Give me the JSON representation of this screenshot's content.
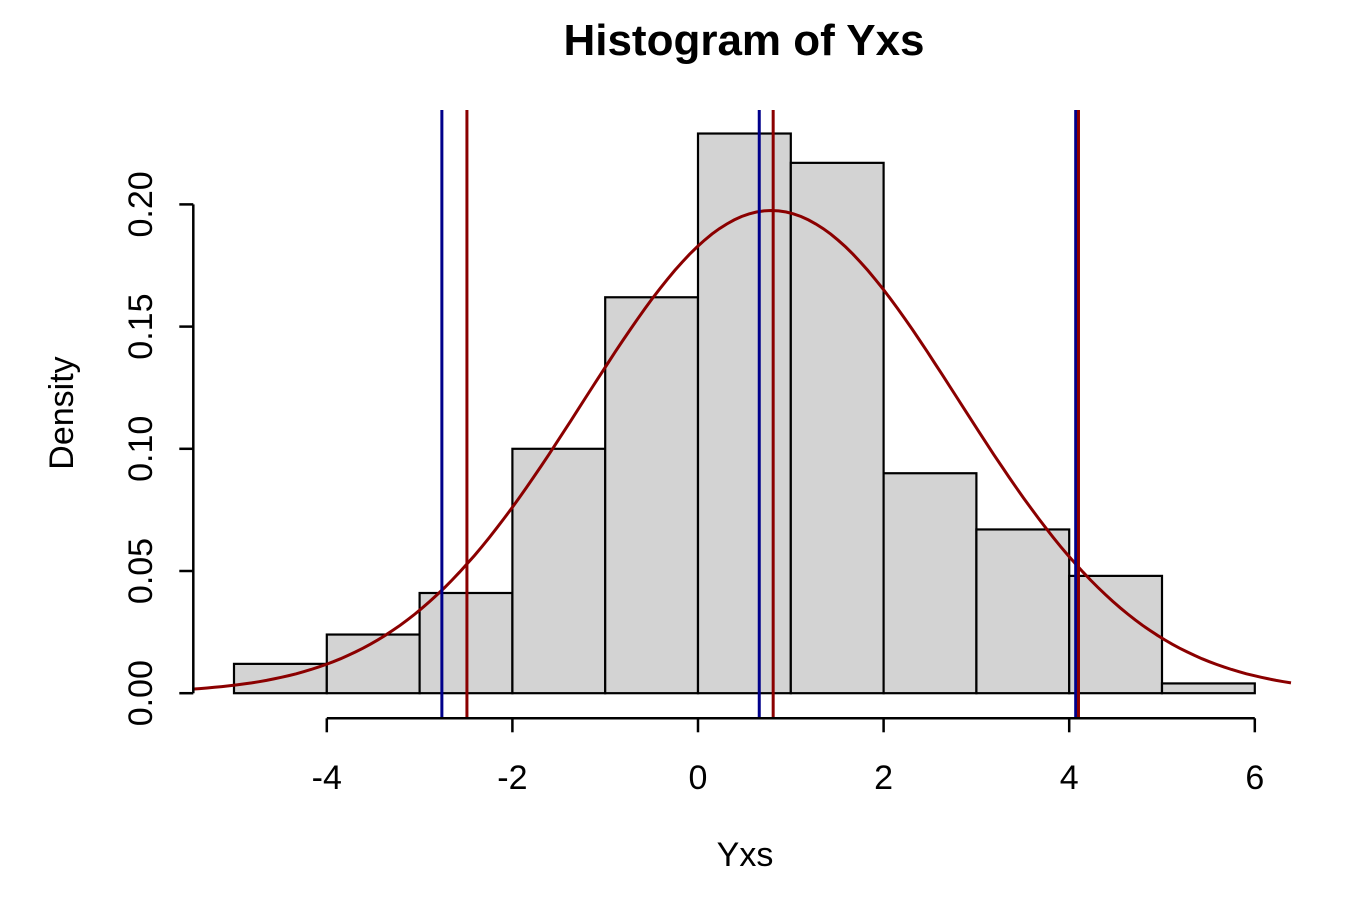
{
  "chart_data": {
    "type": "bar",
    "subtype": "histogram",
    "title": "Histogram of Yxs",
    "xlabel": "Yxs",
    "ylabel": "Density",
    "x_tick_labels": [
      "-4",
      "-2",
      "0",
      "2",
      "4",
      "6"
    ],
    "x_tick_values": [
      -4,
      -2,
      0,
      2,
      4,
      6
    ],
    "y_tick_labels": [
      "0.00",
      "0.05",
      "0.10",
      "0.15",
      "0.20"
    ],
    "y_tick_values": [
      0,
      0.05,
      0.1,
      0.15,
      0.2
    ],
    "xlim": [
      -5.44,
      6.44
    ],
    "ylim": [
      -0.0095,
      0.2395
    ],
    "grid": "off",
    "legend": "none",
    "breaks": [
      -5,
      -4,
      -3,
      -2,
      -1,
      0,
      1,
      2,
      3,
      4,
      5,
      6
    ],
    "densities": [
      0.012,
      0.024,
      0.041,
      0.1,
      0.162,
      0.229,
      0.217,
      0.09,
      0.067,
      0.048,
      0.004
    ],
    "bar_fill": "#D3D3D3",
    "bar_border": "#000000",
    "normal_curve": {
      "mean": 0.79,
      "sd": 2.02,
      "peak_density": 0.1975,
      "color": "#8B0000"
    },
    "vlines": [
      {
        "x": -2.76,
        "color": "#00008B"
      },
      {
        "x": 0.66,
        "color": "#00008B"
      },
      {
        "x": 4.07,
        "color": "#00008B"
      },
      {
        "x": -2.49,
        "color": "#8B0000"
      },
      {
        "x": 0.81,
        "color": "#8B0000"
      },
      {
        "x": 4.1,
        "color": "#8B0000"
      }
    ],
    "colors": {
      "background": "#FFFFFF",
      "axis": "#000000",
      "text": "#000000",
      "blue_line": "#00008B",
      "red_line": "#8B0000"
    }
  }
}
